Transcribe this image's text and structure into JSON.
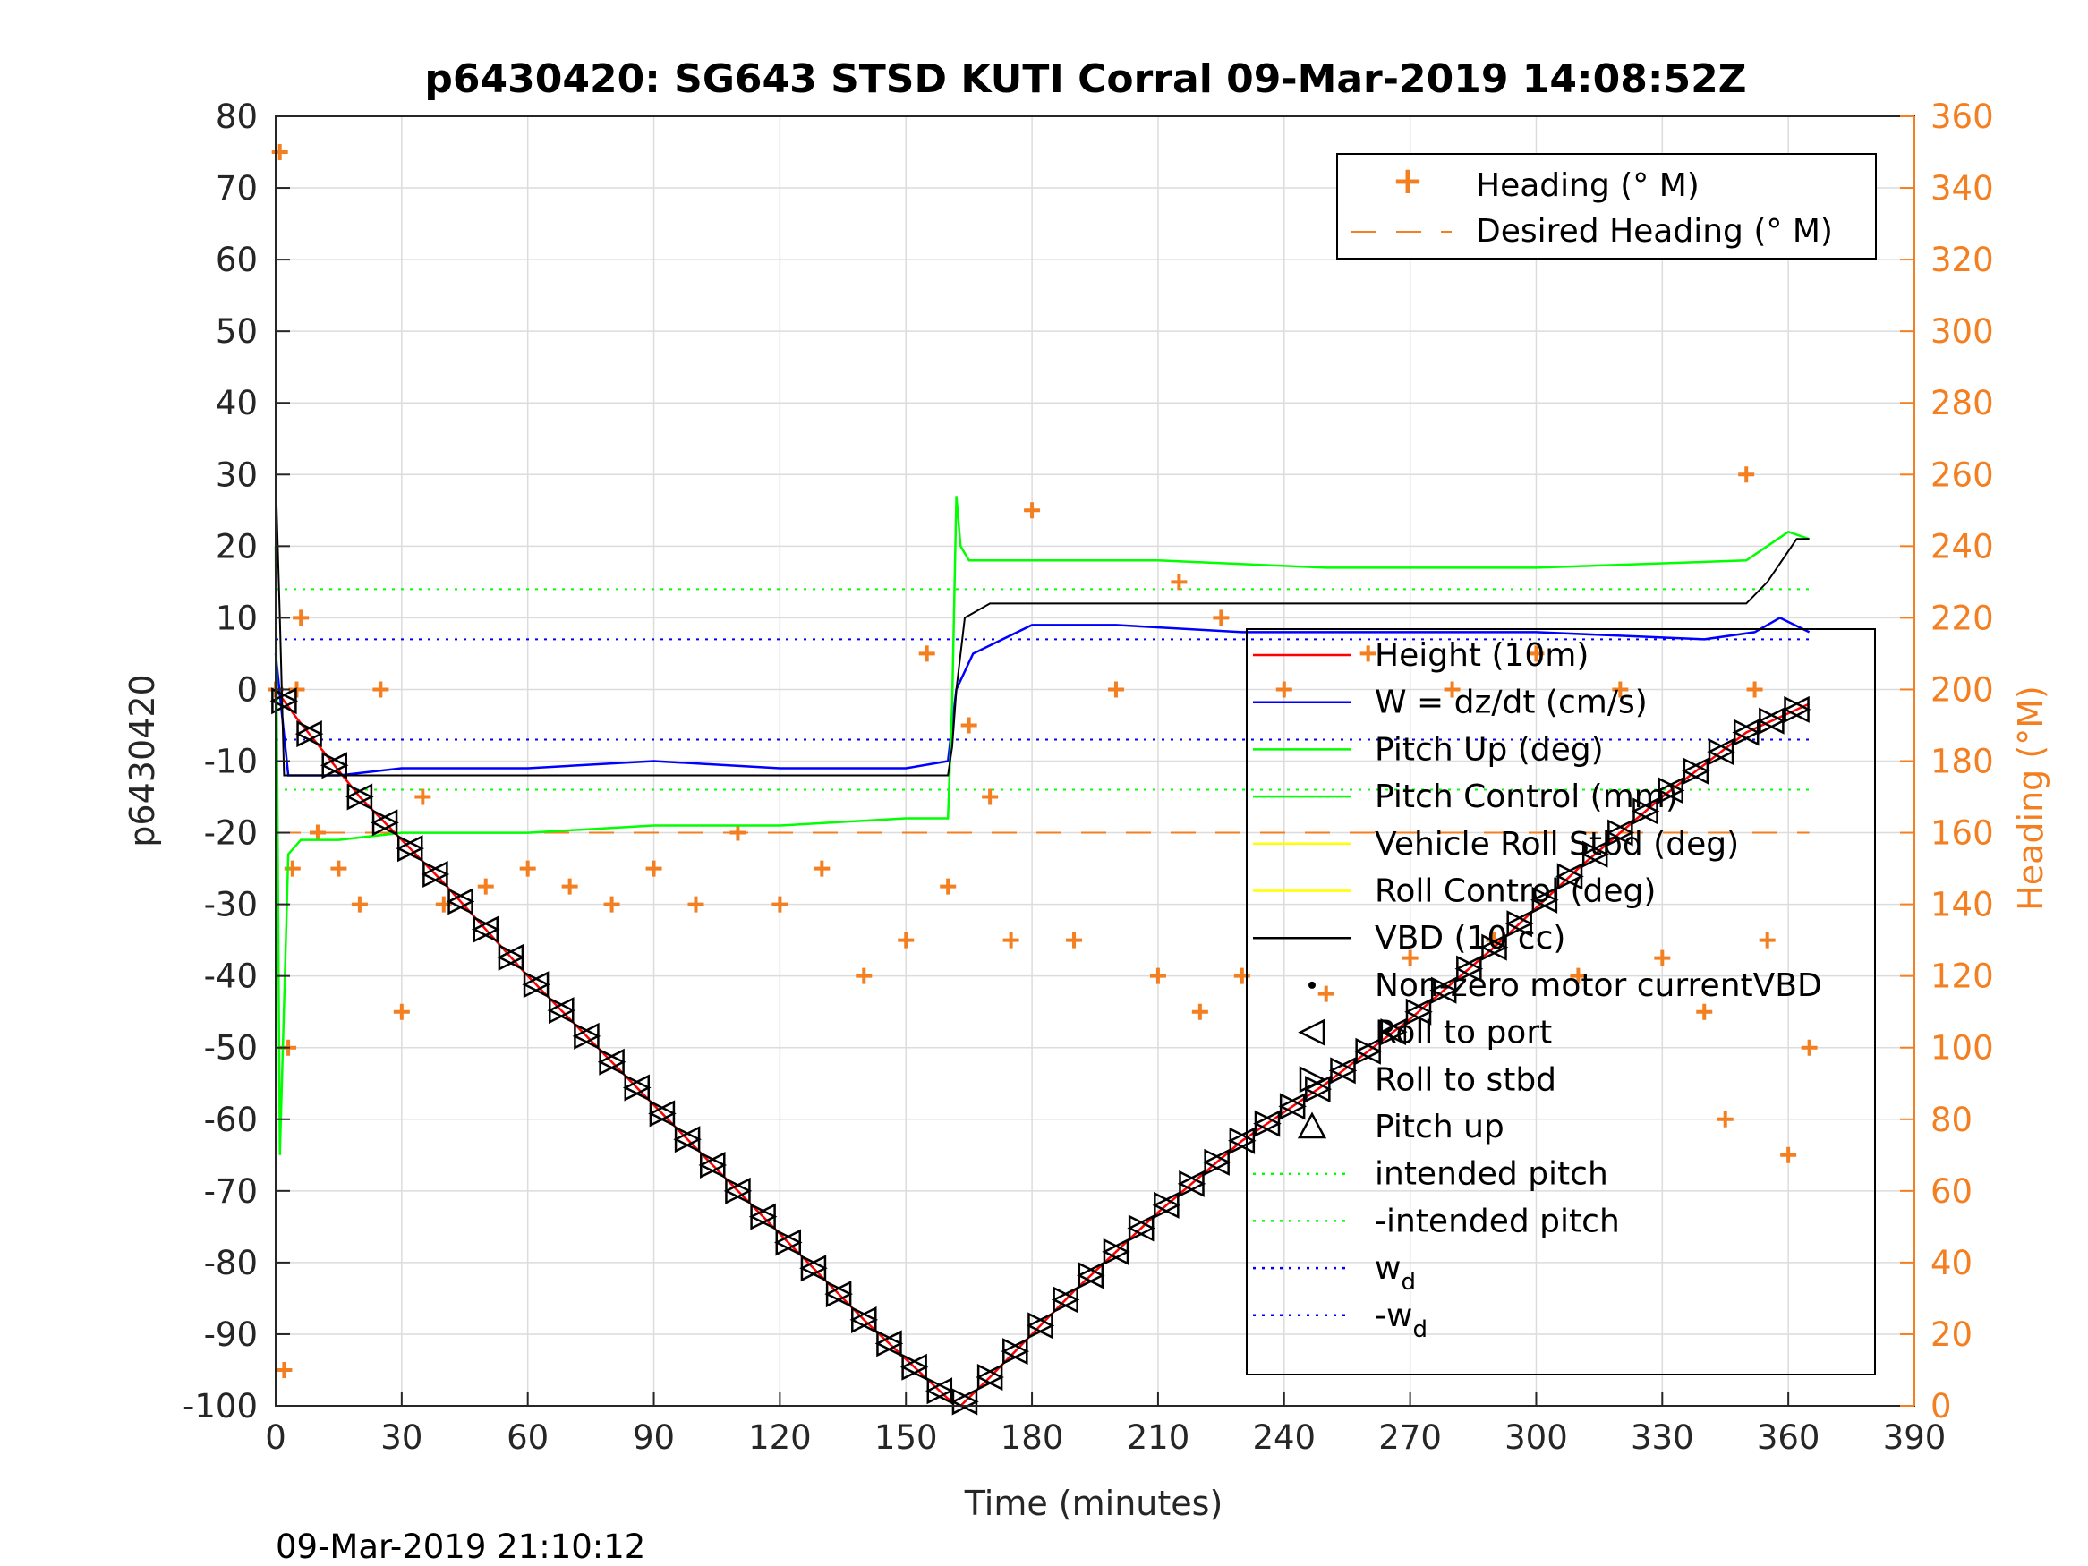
{
  "chart_data": {
    "type": "line",
    "title": "p6430420: SG643 STSD KUTI Corral 09-Mar-2019 14:08:52Z",
    "xlabel": "Time (minutes)",
    "ylabel": "p6430420",
    "ylabel_right": "Heading (°M)",
    "xlim": [
      0,
      390
    ],
    "ylim": [
      -100,
      80
    ],
    "ylim_right": [
      0,
      360
    ],
    "x_ticks": [
      "0",
      "30",
      "60",
      "90",
      "120",
      "150",
      "180",
      "210",
      "240",
      "270",
      "300",
      "330",
      "360",
      "390"
    ],
    "y_ticks": [
      "80",
      "70",
      "60",
      "50",
      "40",
      "30",
      "20",
      "10",
      "0",
      "-10",
      "-20",
      "-30",
      "-40",
      "-50",
      "-60",
      "-70",
      "-80",
      "-90",
      "-100"
    ],
    "y_ticks_right": [
      "360",
      "340",
      "320",
      "300",
      "280",
      "260",
      "240",
      "220",
      "200",
      "180",
      "160",
      "140",
      "120",
      "100",
      "80",
      "60",
      "40",
      "20",
      "0"
    ],
    "grid": true,
    "timestamp": "09-Mar-2019 21:10:12",
    "legend_top": [
      {
        "label": "Heading (° M)",
        "marker": "+",
        "color": "#F47F20"
      },
      {
        "label": "Desired Heading (° M)",
        "style": "dashed",
        "color": "#F47F20"
      }
    ],
    "legend_main": [
      {
        "label": "Height (10m)",
        "color": "#FF0000",
        "style": "solid"
      },
      {
        "label": "W = dz/dt (cm/s)",
        "color": "#0000FF",
        "style": "solid"
      },
      {
        "label": "Pitch Up (deg)",
        "color": "#00FF00",
        "style": "solid"
      },
      {
        "label": "Pitch Control (mm)",
        "color": "#00FF00",
        "style": "solid"
      },
      {
        "label": "Vehicle Roll Stbd (deg)",
        "color": "#FFFF00",
        "style": "solid"
      },
      {
        "label": "Roll Control (deg)",
        "color": "#FFFF00",
        "style": "solid"
      },
      {
        "label": "VBD (10 cc)",
        "color": "#000000",
        "style": "solid"
      },
      {
        "label": "Non-zero motor currentVBD",
        "color": "#000000",
        "style": "dot"
      },
      {
        "label": "Roll to port",
        "color": "#000000",
        "style": "tri-left"
      },
      {
        "label": "Roll to stbd",
        "color": "#000000",
        "style": "tri-right"
      },
      {
        "label": "Pitch up",
        "color": "#000000",
        "style": "tri-up"
      },
      {
        "label": "intended pitch",
        "color": "#00FF00",
        "style": "dotted"
      },
      {
        "label": "-intended pitch",
        "color": "#00FF00",
        "style": "dotted"
      },
      {
        "label": "w",
        "sub": "d",
        "color": "#0000FF",
        "style": "dotted"
      },
      {
        "label": "-w",
        "sub": "d",
        "color": "#0000FF",
        "style": "dotted"
      }
    ],
    "series": [
      {
        "name": "Height (10m)",
        "color": "#FF0000",
        "x": [
          0,
          5,
          20,
          40,
          60,
          80,
          100,
          120,
          140,
          160,
          163,
          170,
          190,
          210,
          230,
          250,
          270,
          290,
          310,
          330,
          350,
          365
        ],
        "y": [
          0,
          -4,
          -15,
          -27,
          -40,
          -52,
          -64,
          -76,
          -88,
          -99,
          -100,
          -96,
          -84,
          -73,
          -63,
          -55,
          -46,
          -36,
          -25,
          -15,
          -6,
          -2
        ]
      },
      {
        "name": "W = dz/dt (cm/s)",
        "color": "#0000FF",
        "x": [
          0,
          3,
          6,
          15,
          30,
          60,
          90,
          120,
          150,
          160,
          162,
          166,
          180,
          200,
          230,
          260,
          300,
          340,
          352,
          358,
          365
        ],
        "y": [
          5,
          -12,
          -12,
          -12,
          -11,
          -11,
          -10,
          -11,
          -11,
          -10,
          0,
          5,
          9,
          9,
          8,
          8,
          8,
          7,
          8,
          10,
          8
        ]
      },
      {
        "name": "Pitch Up (deg)",
        "color": "#00FF00",
        "x": [
          0,
          1,
          3,
          6,
          15,
          30,
          60,
          90,
          120,
          150,
          160,
          161,
          162,
          163,
          165,
          180,
          210,
          250,
          300,
          350,
          355,
          360,
          365
        ],
        "y": [
          20,
          -65,
          -23,
          -21,
          -21,
          -20,
          -20,
          -19,
          -19,
          -18,
          -18,
          -2,
          27,
          20,
          18,
          18,
          18,
          17,
          17,
          18,
          20,
          22,
          21
        ]
      },
      {
        "name": "VBD (10 cc)",
        "color": "#000000",
        "x": [
          0,
          1,
          2,
          3,
          10,
          30,
          60,
          90,
          120,
          150,
          160,
          161,
          162,
          164,
          170,
          200,
          250,
          300,
          335,
          340,
          345,
          350,
          355,
          362,
          365
        ],
        "y": [
          30,
          10,
          -12,
          -12,
          -12,
          -12,
          -12,
          -12,
          -12,
          -12,
          -12,
          -8,
          0,
          10,
          12,
          12,
          12,
          12,
          12,
          12,
          12,
          12,
          15,
          21,
          21
        ]
      }
    ],
    "heading_points_right": {
      "x": [
        0,
        1,
        2,
        3,
        4,
        5,
        6,
        10,
        15,
        20,
        25,
        30,
        35,
        40,
        50,
        60,
        70,
        80,
        90,
        100,
        110,
        120,
        130,
        140,
        150,
        155,
        160,
        165,
        170,
        175,
        180,
        190,
        200,
        210,
        215,
        220,
        225,
        230,
        240,
        250,
        260,
        270,
        280,
        290,
        300,
        310,
        320,
        330,
        340,
        345,
        350,
        352,
        355,
        360,
        365
      ],
      "y": [
        200,
        350,
        10,
        100,
        150,
        200,
        220,
        160,
        150,
        140,
        200,
        110,
        170,
        140,
        145,
        150,
        145,
        140,
        150,
        140,
        160,
        140,
        150,
        120,
        130,
        210,
        145,
        190,
        170,
        130,
        250,
        130,
        200,
        120,
        230,
        110,
        220,
        120,
        200,
        115,
        210,
        125,
        200,
        130,
        210,
        120,
        200,
        125,
        110,
        80,
        260,
        200,
        130,
        70,
        100
      ]
    },
    "desired_heading_right": 160,
    "intended_pitch": 14,
    "wd": 7
  }
}
